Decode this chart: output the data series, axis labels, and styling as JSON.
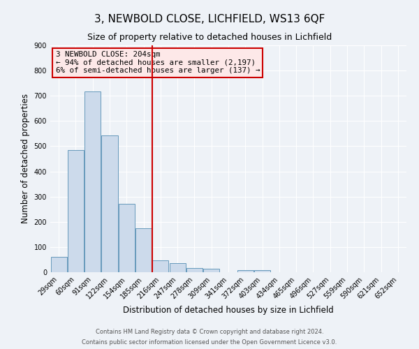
{
  "title": "3, NEWBOLD CLOSE, LICHFIELD, WS13 6QF",
  "subtitle": "Size of property relative to detached houses in Lichfield",
  "xlabel": "Distribution of detached houses by size in Lichfield",
  "ylabel": "Number of detached properties",
  "bar_labels": [
    "29sqm",
    "60sqm",
    "91sqm",
    "122sqm",
    "154sqm",
    "185sqm",
    "216sqm",
    "247sqm",
    "278sqm",
    "309sqm",
    "341sqm",
    "372sqm",
    "403sqm",
    "434sqm",
    "465sqm",
    "496sqm",
    "527sqm",
    "559sqm",
    "590sqm",
    "621sqm",
    "652sqm"
  ],
  "bar_values": [
    62,
    484,
    716,
    543,
    272,
    175,
    48,
    35,
    18,
    14,
    0,
    8,
    8,
    0,
    0,
    0,
    0,
    0,
    0,
    0,
    0
  ],
  "bar_color": "#ccdaeb",
  "bar_edge_color": "#6699bb",
  "vline_x_index": 5.5,
  "vline_color": "#cc0000",
  "ylim": [
    0,
    900
  ],
  "yticks": [
    0,
    100,
    200,
    300,
    400,
    500,
    600,
    700,
    800,
    900
  ],
  "annotation_box_text": "3 NEWBOLD CLOSE: 204sqm\n← 94% of detached houses are smaller (2,197)\n6% of semi-detached houses are larger (137) →",
  "annotation_box_color": "#fde8e8",
  "annotation_box_edge_color": "#cc0000",
  "footer_line1": "Contains HM Land Registry data © Crown copyright and database right 2024.",
  "footer_line2": "Contains public sector information licensed under the Open Government Licence v3.0.",
  "background_color": "#eef2f7",
  "grid_color": "#ffffff",
  "title_fontsize": 11,
  "subtitle_fontsize": 9,
  "tick_fontsize": 7,
  "ylabel_fontsize": 8.5,
  "xlabel_fontsize": 8.5,
  "annotation_fontsize": 7.8,
  "footer_fontsize": 6
}
